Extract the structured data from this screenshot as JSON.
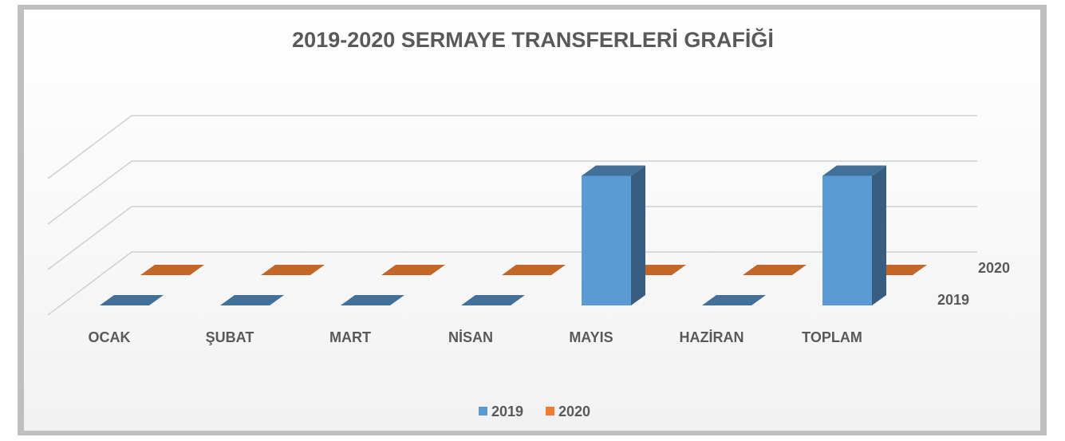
{
  "chart_data": {
    "type": "bar3d",
    "title": "2019-2020 SERMAYE TRANSFERLERİ GRAFİĞİ",
    "categories": [
      "OCAK",
      "ŞUBAT",
      "MART",
      "NİSAN",
      "MAYIS",
      "HAZİRAN",
      "TOPLAM"
    ],
    "series": [
      {
        "name": "2019",
        "color": "#5b9bd5",
        "values": [
          0,
          0,
          0,
          0,
          2.85,
          0,
          2.85
        ]
      },
      {
        "name": "2020",
        "color": "#ed7d31",
        "values": [
          0,
          0,
          0,
          0,
          0,
          0,
          0
        ]
      }
    ],
    "ylim": [
      0,
      3
    ],
    "yticks": [
      0,
      1,
      2,
      3
    ],
    "grid": true,
    "legend": "bottom"
  }
}
